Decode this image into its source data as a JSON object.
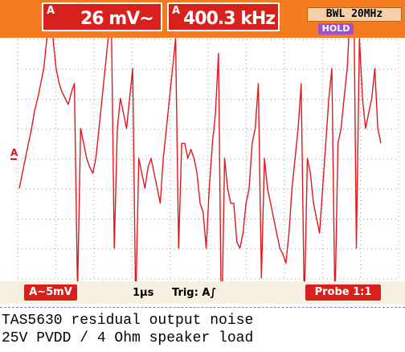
{
  "scope": {
    "amplitude_readout": {
      "channel": "A",
      "value": "26 mV~"
    },
    "frequency_readout": {
      "channel": "A",
      "value": "400.3 kHz"
    },
    "bandwidth_limit": "BWL 20MHz",
    "hold_badge": "HOLD",
    "channel_marker": "A",
    "volts_per_div": "A∼5mV",
    "time_per_div": "1µs",
    "trigger": "Trig: A∫",
    "probe": "Probe 1:1",
    "colors": {
      "top_bar": "#f47b20",
      "readout_bg": "#d8201c",
      "trace": "#e0181c",
      "hold_bg": "#a050c8",
      "grid": "#999999"
    }
  },
  "caption": {
    "line1": "TAS5630 residual output noise",
    "line2": "25V PVDD / 4 Ohm speaker load"
  },
  "chart_data": {
    "type": "line",
    "series": [
      {
        "values": [
          -1,
          -0.5,
          0,
          0.5,
          1,
          1.6,
          2,
          2.5,
          3,
          4,
          6,
          4,
          3,
          2.5,
          2.2,
          2,
          1.8,
          2.2,
          2.5,
          -4.5,
          1,
          0.5,
          0,
          -0.3,
          -0.5,
          0,
          1,
          2,
          3,
          4,
          5,
          -3,
          1,
          2,
          1.5,
          1,
          2,
          3,
          -5,
          0,
          -0.5,
          -1,
          -0.3,
          0,
          -0.5,
          -1,
          -1.5,
          0,
          1,
          2,
          3,
          4,
          -3,
          0.5,
          0.5,
          0,
          0.3,
          0,
          -0.5,
          -1.5,
          -1.8,
          -3,
          -1,
          0.5,
          1.5,
          3.5,
          -6,
          0,
          -1,
          -1.5,
          -1.5,
          -2.8,
          -3,
          -2.5,
          -1.5,
          -1,
          0.5,
          1,
          2.5,
          -4,
          0,
          -1,
          -1.5,
          -2,
          -2.5,
          -3,
          -3.2,
          -3.5,
          -2.5,
          -1,
          0,
          1,
          2.5,
          -5,
          0,
          -0.5,
          -1.5,
          -2,
          -2.5,
          -1,
          0.5,
          2,
          3,
          -5,
          0.5,
          1,
          2,
          3,
          5,
          7,
          -3,
          4,
          2,
          1,
          1.5,
          2,
          3,
          1,
          0.5
        ]
      }
    ]
  }
}
